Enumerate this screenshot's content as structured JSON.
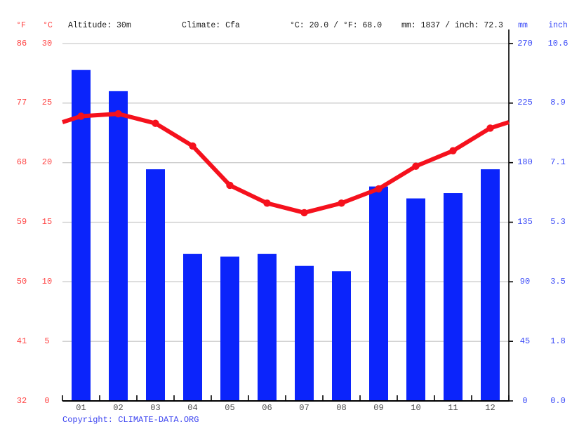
{
  "header": {
    "f_label": "°F",
    "c_label": "°C",
    "altitude": "Altitude: 30m",
    "climate": "Climate: Cfa",
    "temp_summary": "°C: 20.0 / °F: 68.0",
    "precip_summary": "mm: 1837 / inch: 72.3",
    "mm_label": "mm",
    "inch_label": "inch"
  },
  "axes": {
    "fahrenheit_ticks": [
      "86",
      "77",
      "68",
      "59",
      "50",
      "41",
      "32"
    ],
    "celsius_ticks": [
      "30",
      "25",
      "20",
      "15",
      "10",
      "5",
      "0"
    ],
    "mm_ticks": [
      "270",
      "225",
      "180",
      "135",
      "90",
      "45",
      "0"
    ],
    "inch_ticks": [
      "10.6",
      "8.9",
      "7.1",
      "5.3",
      "3.5",
      "1.8",
      "0.0"
    ]
  },
  "chart_data": {
    "type": "bar+line",
    "categories": [
      "01",
      "02",
      "03",
      "04",
      "05",
      "06",
      "07",
      "08",
      "09",
      "10",
      "11",
      "12"
    ],
    "series": [
      {
        "name": "precipitation_mm",
        "type": "bar",
        "values": [
          250,
          234,
          175,
          111,
          109,
          111,
          102,
          98,
          162,
          153,
          157,
          175
        ]
      },
      {
        "name": "temperature_c",
        "type": "line",
        "values": [
          23.9,
          24.1,
          23.3,
          21.4,
          18.1,
          16.6,
          15.8,
          16.6,
          17.8,
          19.7,
          21.0,
          22.9
        ]
      }
    ],
    "annual_mean_temp_c": 20.0,
    "annual_precip_mm": 1837,
    "temp_axis_range_c": [
      0,
      30
    ],
    "precip_axis_range_mm": [
      0,
      270
    ],
    "grid": true,
    "legend_position": "none"
  },
  "colors": {
    "bar_blue": "#0b24fb",
    "line_red": "#f5111d",
    "label_red": "#ff4545",
    "label_blue": "#3b4bf7",
    "month_gray": "#4d4d4d",
    "grid_gray": "#cccccc",
    "axis_black": "#000000"
  },
  "footer": {
    "copyright_label": "Copyright: ",
    "copyright_link": "CLIMATE-DATA.ORG"
  }
}
